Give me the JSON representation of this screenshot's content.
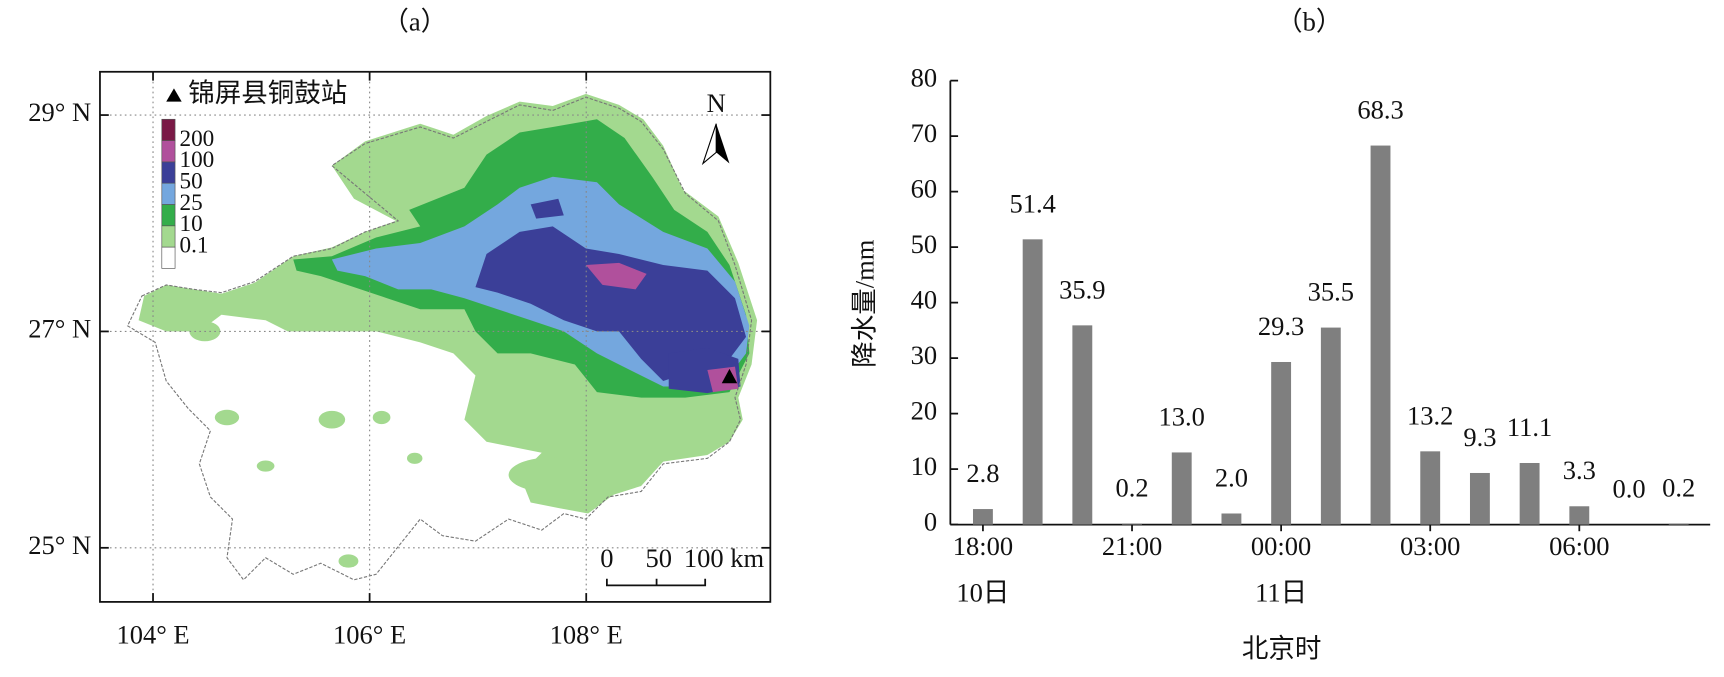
{
  "chart_data": [
    {
      "type": "map",
      "title": "（a）",
      "station_label": "锦屏县铜鼓站",
      "north_label": "N",
      "scale_labels": [
        "0",
        "50",
        "100 km"
      ],
      "legend_levels": [
        0.1,
        10,
        25,
        50,
        100,
        200
      ],
      "legend_colors": [
        "#ffffff",
        "#a3d98f",
        "#33ad4a",
        "#74a7de",
        "#3b3f98",
        "#b0509c",
        "#7a1946"
      ],
      "xlim": [
        103.51,
        109.7
      ],
      "ylim": [
        24.5,
        29.4
      ],
      "xticks": [
        {
          "value": 104,
          "label": "104° E"
        },
        {
          "value": 106,
          "label": "106° E"
        },
        {
          "value": 108,
          "label": "108° E"
        }
      ],
      "yticks": [
        {
          "value": 25,
          "label": "25° N"
        },
        {
          "value": 27,
          "label": "27° N"
        },
        {
          "value": 29,
          "label": "29° N"
        }
      ],
      "grid": true
    },
    {
      "type": "bar",
      "title": "（b）",
      "ylabel": "降水量/mm",
      "xlabel": "北京时",
      "categories": [
        "18:00",
        null,
        null,
        "21:00",
        null,
        null,
        "00:00",
        null,
        null,
        "03:00",
        null,
        null,
        "06:00",
        null,
        null
      ],
      "category_days": [
        "10日",
        null,
        null,
        null,
        null,
        null,
        "11日",
        null,
        null,
        null,
        null,
        null,
        null,
        null,
        null
      ],
      "values": [
        2.8,
        51.4,
        35.9,
        0.2,
        13.0,
        2.0,
        29.3,
        35.5,
        68.3,
        13.2,
        9.3,
        11.1,
        3.3,
        0.0,
        0.2
      ],
      "value_labels": [
        "2.8",
        "51.4",
        "35.9",
        "0.2",
        "13.0",
        "2.0",
        "29.3",
        "35.5",
        "68.3",
        "13.2",
        "9.3",
        "11.1",
        "3.3",
        "0.0",
        "0.2"
      ],
      "color": "#7f7f7f",
      "ylim": [
        0,
        80
      ],
      "yticks": [
        0,
        10,
        20,
        30,
        40,
        50,
        60,
        70,
        80
      ]
    }
  ]
}
